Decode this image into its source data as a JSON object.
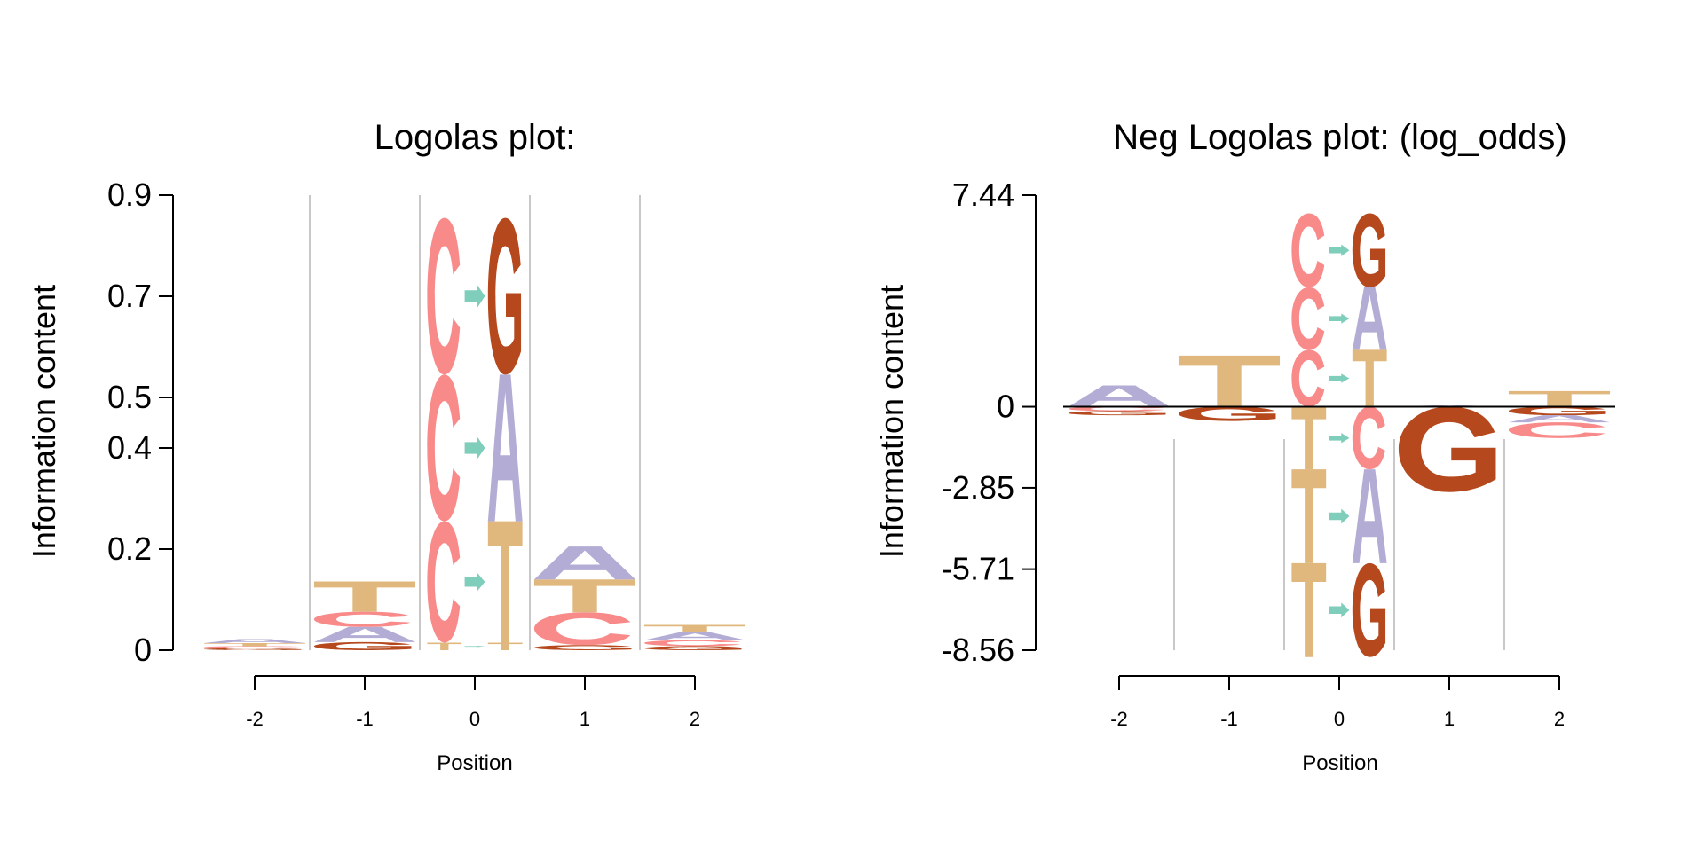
{
  "colors": {
    "A": "#b3acd5",
    "C": "#f98a8a",
    "G": "#b5481c",
    "T": "#e0b87e",
    "arrow": "#7fcdbb",
    "gridline": "#c8c8c8"
  },
  "chart_data": [
    {
      "type": "sequence-logo",
      "title": "Logolas plot:",
      "ylabel": "Information content",
      "xlabel": "Position",
      "yticks": [
        "0",
        "0.2",
        "0.4",
        "0.5",
        "0.7",
        "0.9"
      ],
      "ytick_values": [
        0,
        0.2,
        0.4,
        0.5,
        0.7,
        0.9
      ],
      "ylim": [
        0,
        0.9
      ],
      "positions": [
        -2,
        -1,
        0,
        1,
        2
      ],
      "xticks": [
        "-2",
        "-1",
        "0",
        "1",
        "2"
      ],
      "columns": [
        {
          "position": -2,
          "stack": [
            {
              "symbol": "G",
              "value": 0.004
            },
            {
              "symbol": "C",
              "value": 0.004
            },
            {
              "symbol": "T",
              "value": 0.006
            },
            {
              "symbol": "A",
              "value": 0.008
            }
          ]
        },
        {
          "position": -1,
          "stack": [
            {
              "symbol": "G",
              "value": 0.016
            },
            {
              "symbol": "A",
              "value": 0.03
            },
            {
              "symbol": "C",
              "value": 0.03
            },
            {
              "symbol": "T",
              "value": 0.06
            }
          ]
        },
        {
          "position": 0,
          "kind": "substitution",
          "stack": [
            {
              "from": "T",
              "to": "T",
              "value": 0.015
            },
            {
              "from": "C",
              "to": "T",
              "value": 0.24
            },
            {
              "from": "C",
              "to": "A",
              "value": 0.29
            },
            {
              "from": "C",
              "to": "G",
              "value": 0.31
            }
          ]
        },
        {
          "position": 1,
          "stack": [
            {
              "symbol": "G",
              "value": 0.01
            },
            {
              "symbol": "C",
              "value": 0.065
            },
            {
              "symbol": "T",
              "value": 0.065
            },
            {
              "symbol": "A",
              "value": 0.065
            }
          ]
        },
        {
          "position": 2,
          "stack": [
            {
              "symbol": "G",
              "value": 0.008
            },
            {
              "symbol": "C",
              "value": 0.012
            },
            {
              "symbol": "A",
              "value": 0.015
            },
            {
              "symbol": "T",
              "value": 0.015
            }
          ]
        }
      ]
    },
    {
      "type": "sequence-logo",
      "title": "Neg Logolas plot: (log_odds)",
      "ylabel": "Information content",
      "xlabel": "Position",
      "yticks": [
        "7.44",
        "0",
        "-2.85",
        "-5.71",
        "-8.56"
      ],
      "ytick_values": [
        7.44,
        0,
        -2.85,
        -5.71,
        -8.56
      ],
      "ylim": [
        -8.56,
        7.44
      ],
      "positions": [
        -2,
        -1,
        0,
        1,
        2
      ],
      "xticks": [
        "-2",
        "-1",
        "0",
        "1",
        "2"
      ],
      "columns": [
        {
          "position": -2,
          "positive": [
            {
              "symbol": "A",
              "value": 0.75
            }
          ],
          "negative": [
            {
              "symbol": "C",
              "value": 0.15
            },
            {
              "symbol": "G",
              "value": 0.15
            }
          ]
        },
        {
          "position": -1,
          "positive": [
            {
              "symbol": "T",
              "value": 1.8
            }
          ],
          "negative": [
            {
              "symbol": "G",
              "value": 0.5
            }
          ]
        },
        {
          "position": 0,
          "kind": "substitution",
          "positive": [
            {
              "from": "C",
              "to": "T",
              "value": 2.0
            },
            {
              "from": "C",
              "to": "A",
              "value": 2.2
            },
            {
              "from": "C",
              "to": "G",
              "value": 2.6
            }
          ],
          "negative": [
            {
              "from": "T",
              "to": "C",
              "value": 2.2
            },
            {
              "from": "T",
              "to": "A",
              "value": 3.3
            },
            {
              "from": "T",
              "to": "G",
              "value": 3.3
            }
          ]
        },
        {
          "position": 1,
          "positive": [
            {
              "symbol": "A",
              "value": 0.05
            }
          ],
          "negative": [
            {
              "symbol": "G",
              "value": 3.0
            }
          ]
        },
        {
          "position": 2,
          "positive": [
            {
              "symbol": "T",
              "value": 0.55
            }
          ],
          "negative": [
            {
              "symbol": "G",
              "value": 0.3
            },
            {
              "symbol": "A",
              "value": 0.25
            },
            {
              "symbol": "C",
              "value": 0.55
            }
          ]
        }
      ]
    }
  ]
}
